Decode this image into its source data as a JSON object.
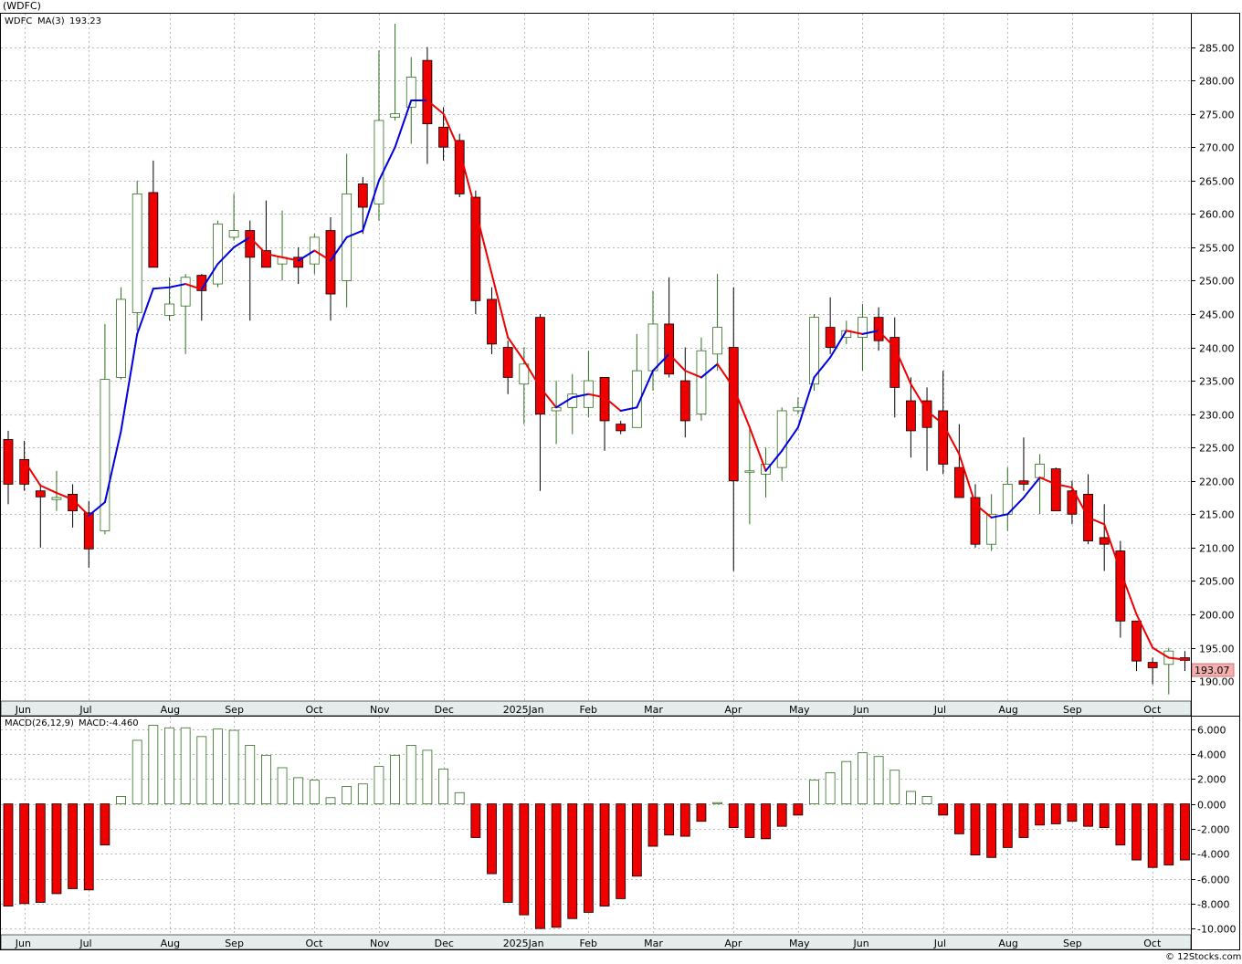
{
  "header": {
    "title": "(WDFC)",
    "symbol": "WDFC",
    "ma_label": "MA(3)",
    "ma_value": "193.23",
    "last_price": "193.07",
    "macd_label": "MACD(26,12,9)",
    "macd_value": "MACD:-4.460",
    "footer": "© 12Stocks.com"
  },
  "colors": {
    "up": "#2e6e1e",
    "down": "#ee0000",
    "ma_up": "#0000dd",
    "ma_down": "#ee0000",
    "price_tag_bg": "#f4b0b0",
    "axis_bg": "#e4ecec"
  },
  "chart_data": [
    {
      "type": "candlestick",
      "title": "(WDFC)",
      "ylim": [
        187,
        290
      ],
      "yticks": [
        190,
        195,
        200,
        205,
        210,
        215,
        220,
        225,
        230,
        235,
        240,
        245,
        250,
        255,
        260,
        265,
        270,
        275,
        280,
        285
      ],
      "xticks": [
        {
          "i": 1,
          "label": "Jun"
        },
        {
          "i": 5,
          "label": "Jul"
        },
        {
          "i": 10,
          "label": "Aug"
        },
        {
          "i": 14,
          "label": "Sep"
        },
        {
          "i": 19,
          "label": "Oct"
        },
        {
          "i": 23,
          "label": "Nov"
        },
        {
          "i": 27,
          "label": "Dec"
        },
        {
          "i": 32,
          "label": "2025Jan"
        },
        {
          "i": 36,
          "label": "Feb"
        },
        {
          "i": 40,
          "label": "Mar"
        },
        {
          "i": 45,
          "label": "Apr"
        },
        {
          "i": 49,
          "label": "May"
        },
        {
          "i": 53,
          "label": "Jun"
        },
        {
          "i": 58,
          "label": "Jul"
        },
        {
          "i": 62,
          "label": "Aug"
        },
        {
          "i": 66,
          "label": "Sep"
        },
        {
          "i": 71,
          "label": "Oct"
        }
      ],
      "candles": [
        {
          "o": 226.2,
          "h": 227.5,
          "l": 216.5,
          "c": 219.5
        },
        {
          "o": 223.2,
          "h": 226.0,
          "l": 218.5,
          "c": 219.5
        },
        {
          "o": 218.5,
          "h": 219.5,
          "l": 210.0,
          "c": 217.6
        },
        {
          "o": 217.2,
          "h": 221.5,
          "l": 215.5,
          "c": 217.5
        },
        {
          "o": 218.0,
          "h": 219.5,
          "l": 213.0,
          "c": 215.5
        },
        {
          "o": 215.2,
          "h": 217.0,
          "l": 207.0,
          "c": 209.8
        },
        {
          "o": 212.5,
          "h": 243.5,
          "l": 212.0,
          "c": 235.2
        },
        {
          "o": 235.5,
          "h": 249.0,
          "l": 235.2,
          "c": 247.2
        },
        {
          "o": 245.2,
          "h": 265.0,
          "l": 242.5,
          "c": 263.0
        },
        {
          "o": 263.2,
          "h": 268.0,
          "l": 252.5,
          "c": 252.0
        },
        {
          "o": 244.8,
          "h": 250.5,
          "l": 244.0,
          "c": 246.5
        },
        {
          "o": 246.2,
          "h": 251.0,
          "l": 239.0,
          "c": 250.5
        },
        {
          "o": 250.8,
          "h": 251.0,
          "l": 244.0,
          "c": 248.5
        },
        {
          "o": 249.5,
          "h": 259.0,
          "l": 249.0,
          "c": 258.5
        },
        {
          "o": 256.5,
          "h": 263.0,
          "l": 256.0,
          "c": 257.5
        },
        {
          "o": 257.5,
          "h": 259.0,
          "l": 244.0,
          "c": 253.5
        },
        {
          "o": 254.5,
          "h": 262.0,
          "l": 252.0,
          "c": 252.0
        },
        {
          "o": 252.5,
          "h": 260.5,
          "l": 250.0,
          "c": 253.5
        },
        {
          "o": 253.5,
          "h": 255.0,
          "l": 249.5,
          "c": 252.0
        },
        {
          "o": 252.5,
          "h": 257.0,
          "l": 251.0,
          "c": 256.5
        },
        {
          "o": 257.5,
          "h": 259.5,
          "l": 244.0,
          "c": 248.0
        },
        {
          "o": 250.0,
          "h": 269.0,
          "l": 246.0,
          "c": 263.0
        },
        {
          "o": 264.5,
          "h": 265.5,
          "l": 257.0,
          "c": 261.0
        },
        {
          "o": 261.5,
          "h": 284.5,
          "l": 259.0,
          "c": 274.0
        },
        {
          "o": 274.5,
          "h": 288.5,
          "l": 274.0,
          "c": 275.0
        },
        {
          "o": 276.0,
          "h": 283.5,
          "l": 270.5,
          "c": 280.5
        },
        {
          "o": 283.0,
          "h": 285.0,
          "l": 267.5,
          "c": 273.5
        },
        {
          "o": 273.0,
          "h": 276.0,
          "l": 268.0,
          "c": 270.0
        },
        {
          "o": 271.0,
          "h": 272.0,
          "l": 262.5,
          "c": 263.0
        },
        {
          "o": 262.5,
          "h": 263.5,
          "l": 245.0,
          "c": 247.0
        },
        {
          "o": 247.2,
          "h": 249.0,
          "l": 239.0,
          "c": 240.5
        },
        {
          "o": 240.0,
          "h": 241.0,
          "l": 233.0,
          "c": 235.5
        },
        {
          "o": 234.5,
          "h": 240.0,
          "l": 228.5,
          "c": 237.5
        },
        {
          "o": 244.5,
          "h": 245.0,
          "l": 218.5,
          "c": 230.0
        },
        {
          "o": 230.5,
          "h": 235.0,
          "l": 225.5,
          "c": 231.0
        },
        {
          "o": 231.0,
          "h": 236.0,
          "l": 227.0,
          "c": 233.0
        },
        {
          "o": 231.0,
          "h": 239.5,
          "l": 229.5,
          "c": 235.0
        },
        {
          "o": 235.5,
          "h": 235.5,
          "l": 224.5,
          "c": 229.0
        },
        {
          "o": 228.5,
          "h": 229.0,
          "l": 227.0,
          "c": 227.5
        },
        {
          "o": 228.0,
          "h": 242.0,
          "l": 228.0,
          "c": 236.5
        },
        {
          "o": 236.5,
          "h": 248.5,
          "l": 233.5,
          "c": 243.5
        },
        {
          "o": 243.5,
          "h": 250.5,
          "l": 235.5,
          "c": 236.0
        },
        {
          "o": 235.0,
          "h": 240.0,
          "l": 226.5,
          "c": 229.0
        },
        {
          "o": 230.0,
          "h": 241.5,
          "l": 229.0,
          "c": 239.5
        },
        {
          "o": 239.0,
          "h": 251.0,
          "l": 236.5,
          "c": 243.0
        },
        {
          "o": 240.0,
          "h": 249.0,
          "l": 206.5,
          "c": 220.0
        },
        {
          "o": 221.5,
          "h": 228.0,
          "l": 213.5,
          "c": 221.5
        },
        {
          "o": 221.0,
          "h": 225.0,
          "l": 217.5,
          "c": 222.5
        },
        {
          "o": 222.0,
          "h": 231.0,
          "l": 220.0,
          "c": 230.5
        },
        {
          "o": 230.5,
          "h": 232.5,
          "l": 230.0,
          "c": 231.0
        },
        {
          "o": 234.5,
          "h": 245.0,
          "l": 233.5,
          "c": 244.5
        },
        {
          "o": 243.0,
          "h": 247.5,
          "l": 239.0,
          "c": 240.0
        },
        {
          "o": 241.5,
          "h": 244.0,
          "l": 240.5,
          "c": 242.5
        },
        {
          "o": 241.5,
          "h": 246.5,
          "l": 236.5,
          "c": 244.5
        },
        {
          "o": 244.5,
          "h": 246.0,
          "l": 239.5,
          "c": 241.0
        },
        {
          "o": 241.5,
          "h": 244.5,
          "l": 229.5,
          "c": 234.0
        },
        {
          "o": 232.0,
          "h": 235.5,
          "l": 223.5,
          "c": 227.5
        },
        {
          "o": 232.0,
          "h": 234.0,
          "l": 221.5,
          "c": 228.0
        },
        {
          "o": 230.5,
          "h": 236.5,
          "l": 221.0,
          "c": 222.5
        },
        {
          "o": 222.0,
          "h": 228.5,
          "l": 217.5,
          "c": 217.5
        },
        {
          "o": 217.5,
          "h": 219.5,
          "l": 210.0,
          "c": 210.5
        },
        {
          "o": 210.5,
          "h": 218.0,
          "l": 209.5,
          "c": 215.0
        },
        {
          "o": 215.0,
          "h": 222.0,
          "l": 212.5,
          "c": 219.5
        },
        {
          "o": 220.0,
          "h": 226.5,
          "l": 218.5,
          "c": 219.5
        },
        {
          "o": 220.5,
          "h": 224.0,
          "l": 215.0,
          "c": 222.5
        },
        {
          "o": 221.8,
          "h": 222.0,
          "l": 215.5,
          "c": 215.5
        },
        {
          "o": 218.5,
          "h": 220.0,
          "l": 213.5,
          "c": 215.0
        },
        {
          "o": 218.0,
          "h": 221.0,
          "l": 210.5,
          "c": 211.0
        },
        {
          "o": 211.5,
          "h": 216.5,
          "l": 206.5,
          "c": 210.5
        },
        {
          "o": 209.5,
          "h": 211.0,
          "l": 196.5,
          "c": 199.0
        },
        {
          "o": 199.0,
          "h": 199.0,
          "l": 191.5,
          "c": 193.0
        },
        {
          "o": 192.8,
          "h": 193.5,
          "l": 189.5,
          "c": 192.0
        },
        {
          "o": 192.5,
          "h": 195.0,
          "l": 188.0,
          "c": 194.5
        },
        {
          "o": 193.5,
          "h": 194.5,
          "l": 191.5,
          "c": 193.1
        }
      ],
      "ma": [
        null,
        223.0,
        219.3,
        218.2,
        217.2,
        214.8,
        216.8,
        227.5,
        242.0,
        248.8,
        249.0,
        249.5,
        248.7,
        252.5,
        255.0,
        256.5,
        254.0,
        253.5,
        253.0,
        254.5,
        253.0,
        256.5,
        257.5,
        265.0,
        270.0,
        277.0,
        277.0,
        275.0,
        269.5,
        260.5,
        251.0,
        241.5,
        238.0,
        234.0,
        231.0,
        232.5,
        233.0,
        232.5,
        230.5,
        231.0,
        236.5,
        239.0,
        236.5,
        235.5,
        237.5,
        234.0,
        228.0,
        221.5,
        224.5,
        228.0,
        235.5,
        238.5,
        242.5,
        242.0,
        242.5,
        240.0,
        234.5,
        230.5,
        228.5,
        224.0,
        216.5,
        214.5,
        215.0,
        217.5,
        220.5,
        219.5,
        219.0,
        214.5,
        213.5,
        206.5,
        200.0,
        195.0,
        193.5,
        193.2
      ],
      "macd": [
        -8.2,
        -8.0,
        -7.9,
        -7.2,
        -6.8,
        -6.9,
        -3.3,
        0.6,
        5.1,
        6.3,
        6.1,
        6.1,
        5.4,
        6.0,
        5.9,
        4.7,
        3.9,
        2.9,
        2.1,
        1.9,
        0.5,
        1.4,
        1.6,
        3.0,
        3.9,
        4.7,
        4.3,
        2.8,
        0.9,
        -2.7,
        -5.6,
        -7.9,
        -8.9,
        -10.0,
        -9.9,
        -9.2,
        -8.7,
        -8.2,
        -7.6,
        -5.8,
        -3.4,
        -2.5,
        -2.6,
        -1.4,
        0.1,
        -1.9,
        -2.7,
        -2.8,
        -1.8,
        -0.9,
        1.9,
        2.5,
        3.4,
        4.1,
        3.8,
        2.7,
        1.0,
        0.6,
        -0.9,
        -2.4,
        -4.1,
        -4.3,
        -3.5,
        -2.7,
        -1.7,
        -1.6,
        -1.4,
        -1.8,
        -1.9,
        -3.3,
        -4.5,
        -5.1,
        -4.9,
        -4.5
      ],
      "macd_ylim": [
        -10.5,
        7.0
      ],
      "macd_yticks": [
        6,
        4,
        2,
        0,
        -2,
        -4,
        -6,
        -8,
        -10
      ],
      "macd_yticklabels": [
        "6.000",
        "4.000",
        "2.000",
        "0.000",
        "-2.000",
        "-4.000",
        "-6.000",
        "-8.000",
        "-10.000"
      ]
    }
  ]
}
